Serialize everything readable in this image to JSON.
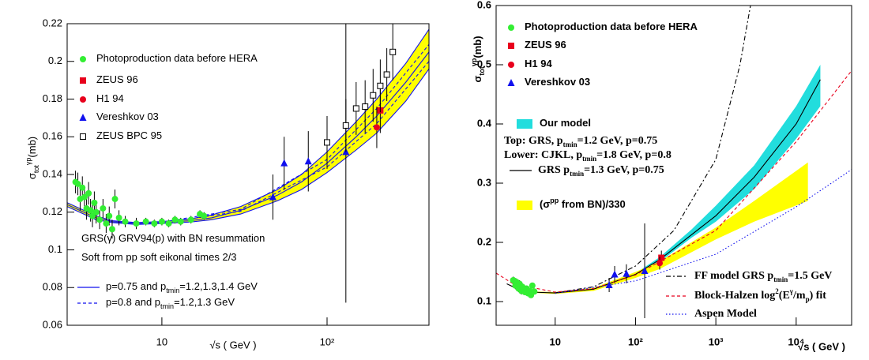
{
  "chart_data": [
    {
      "type": "scatter",
      "xscale": "log",
      "xlabel": "√s ( GeV )",
      "ylabel": [
        "σ",
        {
          "sub": "tot"
        },
        {
          "sup": "γp"
        },
        "(mb)"
      ],
      "xlim": [
        2.67,
        414
      ],
      "ylim": [
        0.06,
        0.22
      ],
      "xticks": [
        10,
        {
          "value": 100,
          "label": "10²"
        }
      ],
      "yticks": [
        0.06,
        0.08,
        0.1,
        0.12,
        0.14,
        0.16,
        0.18,
        0.2,
        0.22
      ],
      "series": [
        {
          "name": [
            "Photoproduction data before HERA"
          ],
          "marker": "circle",
          "color": "#33ee33",
          "x": [
            3.0,
            3.1,
            3.2,
            3.3,
            3.4,
            3.5,
            3.6,
            3.7,
            3.8,
            3.9,
            4.0,
            4.2,
            4.4,
            4.6,
            4.8,
            5.0,
            5.2,
            5.5,
            6,
            7,
            8,
            9,
            10,
            11,
            12,
            13,
            15,
            17,
            18
          ],
          "values": [
            0.136,
            0.135,
            0.127,
            0.133,
            0.128,
            0.122,
            0.13,
            0.121,
            0.118,
            0.125,
            0.12,
            0.116,
            0.122,
            0.114,
            0.118,
            0.111,
            0.127,
            0.117,
            0.115,
            0.114,
            0.115,
            0.114,
            0.115,
            0.114,
            0.116,
            0.115,
            0.116,
            0.119,
            0.118
          ],
          "errors": [
            0.006,
            0.006,
            0.006,
            0.006,
            0.006,
            0.006,
            0.006,
            0.006,
            0.006,
            0.006,
            0.006,
            0.005,
            0.005,
            0.005,
            0.005,
            0.005,
            0.005,
            0.004,
            0.003,
            0.003,
            0.002,
            0.002,
            0.002,
            0.002,
            0.002,
            0.002,
            0.002,
            0.002,
            0.002
          ]
        },
        {
          "name": [
            "ZEUS 96"
          ],
          "marker": "square",
          "color": "#e8001c",
          "x": [
            210
          ],
          "values": [
            0.174
          ],
          "errors": [
            0.012
          ]
        },
        {
          "name": [
            "H1 94"
          ],
          "marker": "circle",
          "color": "#e8001c",
          "x": [
            200
          ],
          "values": [
            0.165
          ],
          "errors": [
            0.011
          ]
        },
        {
          "name": [
            "Vereshkov 03"
          ],
          "marker": "triangle",
          "color": "#1010ee",
          "x": [
            47,
            55,
            77,
            130
          ],
          "values": [
            0.128,
            0.146,
            0.147,
            0.152
          ],
          "errors": [
            0.012,
            0.014,
            0.016,
            0.08
          ]
        },
        {
          "name": [
            "ZEUS BPC 95"
          ],
          "marker": "open-square",
          "color": "#000000",
          "x": [
            100,
            130,
            150,
            170,
            190,
            210,
            230,
            250
          ],
          "values": [
            0.157,
            0.166,
            0.175,
            0.176,
            0.182,
            0.187,
            0.193,
            0.205
          ],
          "errors": [
            0.014,
            0.014,
            0.014,
            0.014,
            0.014,
            0.014,
            0.014,
            0.015
          ]
        }
      ],
      "bands": [
        {
          "color": "#ffff00",
          "x": [
            2.67,
            3,
            4,
            5,
            7,
            10,
            15,
            20,
            30,
            50,
            70,
            100,
            150,
            200,
            300,
            414
          ],
          "upper": [
            0.125,
            0.123,
            0.118,
            0.1155,
            0.1145,
            0.115,
            0.1165,
            0.1185,
            0.123,
            0.132,
            0.14,
            0.152,
            0.168,
            0.18,
            0.199,
            0.217
          ],
          "lower": [
            0.123,
            0.121,
            0.116,
            0.1145,
            0.1135,
            0.114,
            0.1148,
            0.116,
            0.119,
            0.126,
            0.132,
            0.141,
            0.153,
            0.162,
            0.179,
            0.196
          ]
        }
      ],
      "lines": [
        {
          "name": [
            "p=0.75 and p",
            {
              "sub": "tmin"
            },
            "=1.2,1.3,1.4 GeV"
          ],
          "color": "#1010ee",
          "dash": "none",
          "curves": [
            {
              "x": [
                2.67,
                3,
                4,
                5,
                7,
                10,
                15,
                20,
                30,
                50,
                70,
                100,
                150,
                200,
                300,
                414
              ],
              "values": [
                0.125,
                0.123,
                0.118,
                0.1155,
                0.1145,
                0.115,
                0.1165,
                0.1185,
                0.123,
                0.132,
                0.14,
                0.152,
                0.168,
                0.18,
                0.199,
                0.217
              ]
            },
            {
              "x": [
                2.67,
                3,
                4,
                5,
                7,
                10,
                15,
                20,
                30,
                50,
                70,
                100,
                150,
                200,
                300,
                414
              ],
              "values": [
                0.124,
                0.122,
                0.117,
                0.115,
                0.114,
                0.1145,
                0.1155,
                0.117,
                0.121,
                0.129,
                0.136,
                0.146,
                0.16,
                0.171,
                0.189,
                0.205
              ]
            },
            {
              "x": [
                2.67,
                3,
                4,
                5,
                7,
                10,
                15,
                20,
                30,
                50,
                70,
                100,
                150,
                200,
                300,
                414
              ],
              "values": [
                0.123,
                0.121,
                0.116,
                0.1145,
                0.1135,
                0.114,
                0.1148,
                0.116,
                0.119,
                0.126,
                0.132,
                0.141,
                0.153,
                0.162,
                0.179,
                0.196
              ]
            }
          ]
        },
        {
          "name": [
            "p=0.8 and p",
            {
              "sub": "tmin"
            },
            "=1.2,1.3 GeV"
          ],
          "color": "#1010ee",
          "dash": "4 3",
          "curves": [
            {
              "x": [
                10,
                30,
                100,
                200,
                414
              ],
              "values": [
                0.1148,
                0.1215,
                0.148,
                0.175,
                0.209
              ]
            },
            {
              "x": [
                10,
                30,
                100,
                200,
                414
              ],
              "values": [
                0.1142,
                0.1205,
                0.144,
                0.167,
                0.2
              ]
            }
          ]
        }
      ],
      "annotations": [
        [
          "GRS(γ) GRV94(p) with BN resummation"
        ],
        [
          "Soft from pp soft eikonal times 2/3"
        ]
      ]
    },
    {
      "type": "scatter",
      "xscale": "log",
      "xlabel": "√s ( GeV )",
      "ylabel": [
        "σ",
        {
          "sub": "tot"
        },
        {
          "sup": "γp"
        },
        "(mb)"
      ],
      "xlim": [
        1.84,
        49000
      ],
      "ylim": [
        0.06,
        0.6
      ],
      "xticks": [
        10,
        {
          "value": 100,
          "label": "10²"
        },
        {
          "value": 1000,
          "label": "10³"
        },
        {
          "value": 10000,
          "label": "10⁴"
        }
      ],
      "yticks": [
        0.1,
        0.2,
        0.3,
        0.4,
        0.5,
        0.6
      ],
      "series": [
        {
          "name": [
            "Photoproduction data before HERA"
          ],
          "marker": "circle",
          "color": "#33ee33",
          "x": [
            3.0,
            3.1,
            3.2,
            3.3,
            3.4,
            3.5,
            3.6,
            3.7,
            3.8,
            3.9,
            4.0,
            4.2,
            4.4,
            4.6,
            4.8,
            5.0,
            5.2,
            5.5
          ],
          "values": [
            0.136,
            0.135,
            0.127,
            0.133,
            0.128,
            0.122,
            0.13,
            0.121,
            0.118,
            0.125,
            0.12,
            0.116,
            0.122,
            0.114,
            0.118,
            0.111,
            0.127,
            0.117
          ],
          "errors": [
            0.006,
            0.006,
            0.006,
            0.006,
            0.006,
            0.006,
            0.006,
            0.006,
            0.006,
            0.006,
            0.006,
            0.005,
            0.005,
            0.005,
            0.005,
            0.005,
            0.005,
            0.004
          ]
        },
        {
          "name": [
            "ZEUS 96"
          ],
          "marker": "square",
          "color": "#e8001c",
          "x": [
            210
          ],
          "values": [
            0.174
          ],
          "errors": [
            0.012
          ]
        },
        {
          "name": [
            "H1 94"
          ],
          "marker": "circle",
          "color": "#e8001c",
          "x": [
            200
          ],
          "values": [
            0.165
          ],
          "errors": [
            0.011
          ]
        },
        {
          "name": [
            "Vereshkov 03"
          ],
          "marker": "triangle",
          "color": "#1010ee",
          "x": [
            47,
            55,
            77,
            130
          ],
          "values": [
            0.128,
            0.146,
            0.147,
            0.152
          ],
          "errors": [
            0.012,
            0.014,
            0.016,
            0.08
          ]
        }
      ],
      "bands": [
        {
          "name": [
            "Our model"
          ],
          "color": "#22dddd",
          "x": [
            100,
            200,
            500,
            1000,
            3000,
            10000,
            20000
          ],
          "upper": [
            0.148,
            0.175,
            0.222,
            0.262,
            0.33,
            0.43,
            0.5
          ],
          "lower": [
            0.144,
            0.167,
            0.208,
            0.235,
            0.29,
            0.375,
            0.43
          ]
        },
        {
          "name": [
            "(σ",
            {
              "sup": "pp"
            },
            " from BN)/330"
          ],
          "color": "#ffff00",
          "x": [
            5,
            10,
            30,
            100,
            200,
            1000,
            3000,
            14000
          ],
          "upper": [
            0.117,
            0.116,
            0.123,
            0.15,
            0.168,
            0.225,
            0.27,
            0.335
          ],
          "lower": [
            0.115,
            0.113,
            0.118,
            0.14,
            0.155,
            0.205,
            0.235,
            0.27
          ]
        }
      ],
      "lines": [
        {
          "name": [
            "GRS p",
            {
              "sub": "tmin"
            },
            "=1.3 GeV, p=0.75"
          ],
          "color": "#000000",
          "dash": "none",
          "curves": [
            {
              "x": [
                2.5,
                3,
                5,
                10,
                30,
                100,
                200,
                1000,
                3000,
                10000,
                20000
              ],
              "values": [
                0.13,
                0.125,
                0.116,
                0.1145,
                0.121,
                0.146,
                0.171,
                0.245,
                0.31,
                0.4,
                0.475
              ]
            }
          ]
        },
        {
          "name": [
            "FF model GRS p",
            {
              "sub": "tmin"
            },
            "=1.5 GeV"
          ],
          "color": "#000000",
          "dash": "6 3 2 3",
          "curves": [
            {
              "x": [
                10,
                30,
                100,
                300,
                1000,
                2000,
                2700
              ],
              "values": [
                0.115,
                0.125,
                0.16,
                0.22,
                0.34,
                0.5,
                0.6
              ]
            }
          ]
        },
        {
          "name": [
            "Block-Halzen log",
            {
              "sup": "2"
            },
            "(E",
            {
              "sup": "γ"
            },
            "/m",
            {
              "sub": "p"
            },
            ") fit"
          ],
          "color": "#e8001c",
          "dash": "4 3",
          "curves": [
            {
              "x": [
                1.84,
                3,
                10,
                30,
                100,
                1000,
                10000,
                49000
              ],
              "values": [
                0.148,
                0.13,
                0.116,
                0.122,
                0.145,
                0.22,
                0.37,
                0.49
              ]
            }
          ]
        },
        {
          "name": [
            "Aspen Model"
          ],
          "color": "#1010ee",
          "dash": "1.5 2.5",
          "curves": [
            {
              "x": [
                10,
                100,
                1000,
                10000,
                49000
              ],
              "values": [
                0.114,
                0.135,
                0.18,
                0.26,
                0.323
              ]
            }
          ]
        }
      ],
      "annotations": [
        [
          "Top: GRS, p",
          {
            "sub": "tmin"
          },
          "=1.2 GeV, p=0.75"
        ],
        [
          "Lower: CJKL, p",
          {
            "sub": "tmin"
          },
          "=1.8 GeV, p=0.8"
        ]
      ]
    }
  ]
}
